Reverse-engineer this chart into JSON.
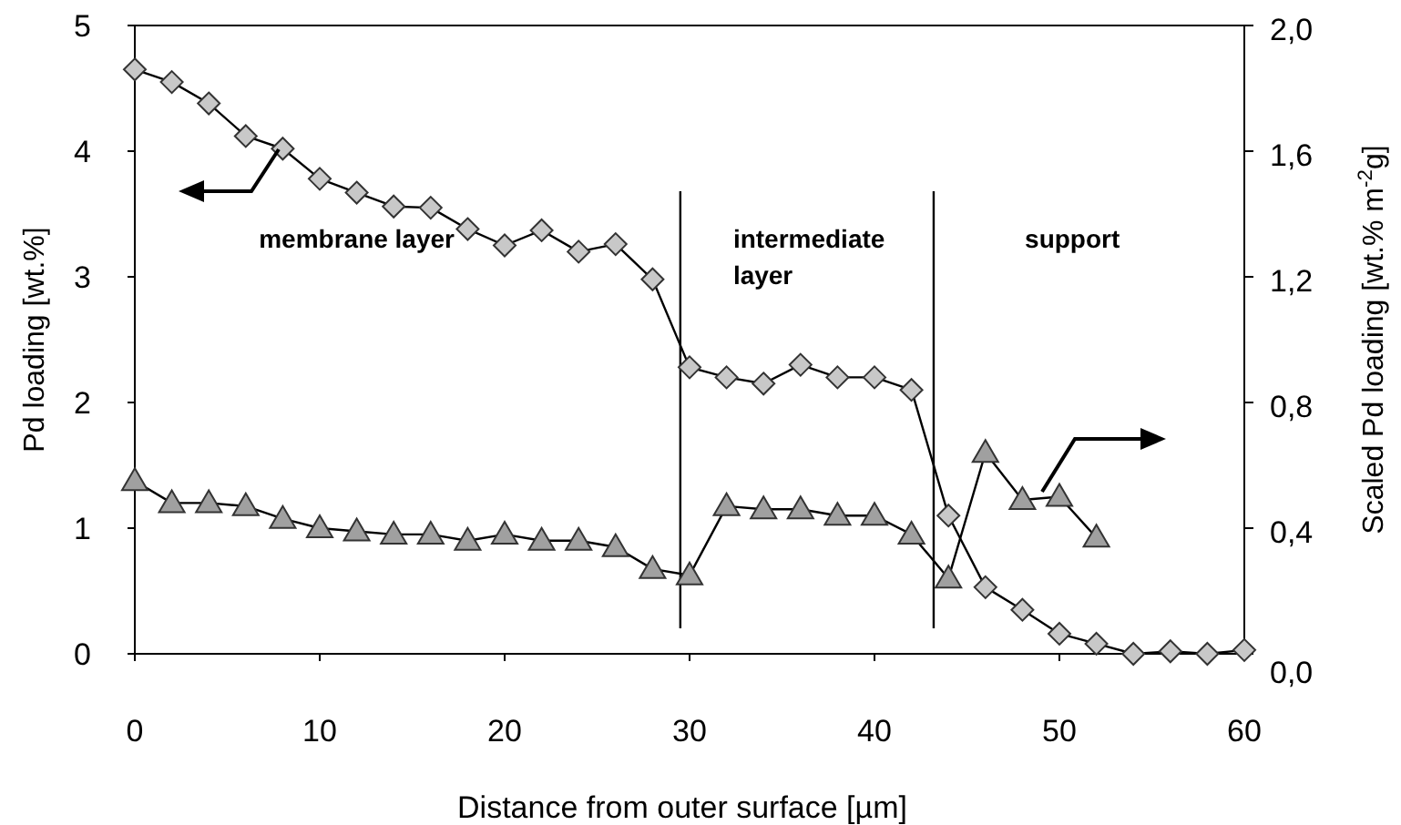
{
  "chart_data": {
    "type": "line",
    "xlabel": "Distance from outer surface [µm]",
    "ylabel": "Pd loading  [wt.%]",
    "y2label": "Scaled Pd loading [wt.% m$^{-2}$g]",
    "xlim": [
      0,
      60
    ],
    "xticks": [
      0,
      10,
      20,
      30,
      40,
      50,
      60
    ],
    "ylim": [
      0,
      5
    ],
    "yticks": [
      0,
      1,
      2,
      3,
      4,
      5
    ],
    "y2lim": [
      0,
      2
    ],
    "y2ticks": [
      {
        "value": 0,
        "label": "0,0"
      },
      {
        "value": 0.4,
        "label": "0,4"
      },
      {
        "value": 0.8,
        "label": "0,8"
      },
      {
        "value": 1.2,
        "label": "1,2"
      },
      {
        "value": 1.6,
        "label": "1,6"
      },
      {
        "value": 2,
        "label": "2,0"
      }
    ],
    "grid": false,
    "line_style": "solid",
    "series": [
      {
        "color": "#c8c8c8",
        "marker": "diamond",
        "x": [
          0,
          2,
          4,
          6,
          8,
          10,
          12,
          14,
          16,
          18,
          20,
          22,
          24,
          26,
          28,
          30,
          32,
          34,
          36,
          38,
          40,
          42,
          44,
          46,
          48,
          50,
          52,
          54,
          56,
          58,
          60
        ],
        "values": [
          4.65,
          4.55,
          4.38,
          4.12,
          4.02,
          3.78,
          3.67,
          3.56,
          3.55,
          3.38,
          3.25,
          3.37,
          3.2,
          3.26,
          2.98,
          2.28,
          2.2,
          2.15,
          2.3,
          2.2,
          2.2,
          2.1,
          1.1,
          0.53,
          0.35,
          0.16,
          0.08,
          0.0,
          0.02,
          0.0,
          0.03
        ]
      },
      {
        "color": "#a0a0a0",
        "marker": "triangle",
        "axis": "y2",
        "x": [
          0,
          2,
          4,
          6,
          8,
          10,
          12,
          14,
          16,
          18,
          20,
          22,
          24,
          26,
          28,
          30,
          32,
          34,
          36,
          38,
          40,
          42,
          44,
          46,
          48,
          50,
          52
        ],
        "values": [
          0.55,
          0.48,
          0.48,
          0.47,
          0.43,
          0.4,
          0.39,
          0.38,
          0.38,
          0.36,
          0.38,
          0.36,
          0.36,
          0.34,
          0.27,
          0.25,
          0.47,
          0.46,
          0.46,
          0.44,
          0.44,
          0.38,
          0.24,
          0.64,
          0.49,
          0.5,
          0.37
        ]
      }
    ],
    "ref_lines": [
      {
        "axis": "x",
        "value": 29.5,
        "color": "#000000"
      },
      {
        "axis": "x",
        "value": 43.2,
        "color": "#000000"
      }
    ],
    "annotations": [
      "membrane layer",
      "intermediate layer",
      "support"
    ]
  }
}
